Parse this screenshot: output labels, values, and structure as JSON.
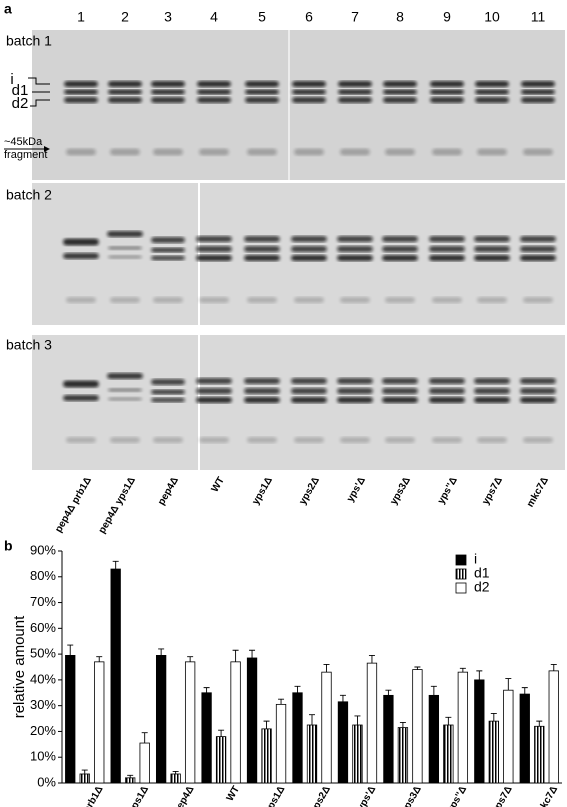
{
  "panel_a": {
    "label": "a",
    "lanes": [
      "1",
      "2",
      "3",
      "4",
      "5",
      "6",
      "7",
      "8",
      "9",
      "10",
      "11"
    ],
    "batches": [
      "batch 1",
      "batch 2",
      "batch 3"
    ],
    "bands": [
      "i",
      "d1",
      "d2"
    ],
    "fragment": [
      "~45kDa",
      "fragment"
    ]
  },
  "chart_data": {
    "type": "bar",
    "label": "b",
    "ylabel": "relative amount",
    "categories": [
      "pep4Δ prb1Δ",
      "pep4Δ yps1Δ",
      "pep4Δ",
      "WT",
      "yps1Δ",
      "yps2Δ",
      "yps'Δ",
      "yps3Δ",
      "yps''Δ",
      "yps7Δ",
      "mkc7Δ"
    ],
    "series": [
      {
        "name": "i",
        "color": "#000000",
        "values": [
          49.5,
          83,
          49.5,
          35,
          48.5,
          35,
          31.5,
          34,
          34,
          40,
          34.5
        ],
        "errors": [
          4,
          3,
          2.5,
          2,
          3,
          2.5,
          2.5,
          2,
          3.5,
          3.5,
          2.5
        ]
      },
      {
        "name": "d1",
        "color": "#000000",
        "hatch": "vertical",
        "values": [
          3.5,
          2,
          3.5,
          18,
          21,
          22.5,
          22.5,
          21.5,
          22.5,
          24,
          22
        ],
        "errors": [
          1.5,
          1,
          1,
          2.5,
          3,
          4,
          3.5,
          2,
          3,
          3,
          2
        ]
      },
      {
        "name": "d2",
        "color": "#ffffff",
        "values": [
          47,
          15.5,
          47,
          47,
          30.5,
          43,
          46.5,
          44,
          43,
          36,
          43.5
        ],
        "errors": [
          2,
          4,
          2,
          4.5,
          2,
          3,
          3,
          1,
          1.5,
          4.5,
          2.5
        ]
      }
    ],
    "ylim": [
      0,
      90
    ],
    "yticks": [
      {
        "value": 0,
        "label": "0%"
      },
      {
        "value": 10,
        "label": "10%"
      },
      {
        "value": 20,
        "label": "20%"
      },
      {
        "value": 30,
        "label": "30%"
      },
      {
        "value": 40,
        "label": "40%"
      },
      {
        "value": 50,
        "label": "50%"
      },
      {
        "value": 60,
        "label": "60%"
      },
      {
        "value": 70,
        "label": "70%"
      },
      {
        "value": 80,
        "label": "80%"
      },
      {
        "value": 90,
        "label": "90%"
      }
    ],
    "legend": "top right"
  }
}
